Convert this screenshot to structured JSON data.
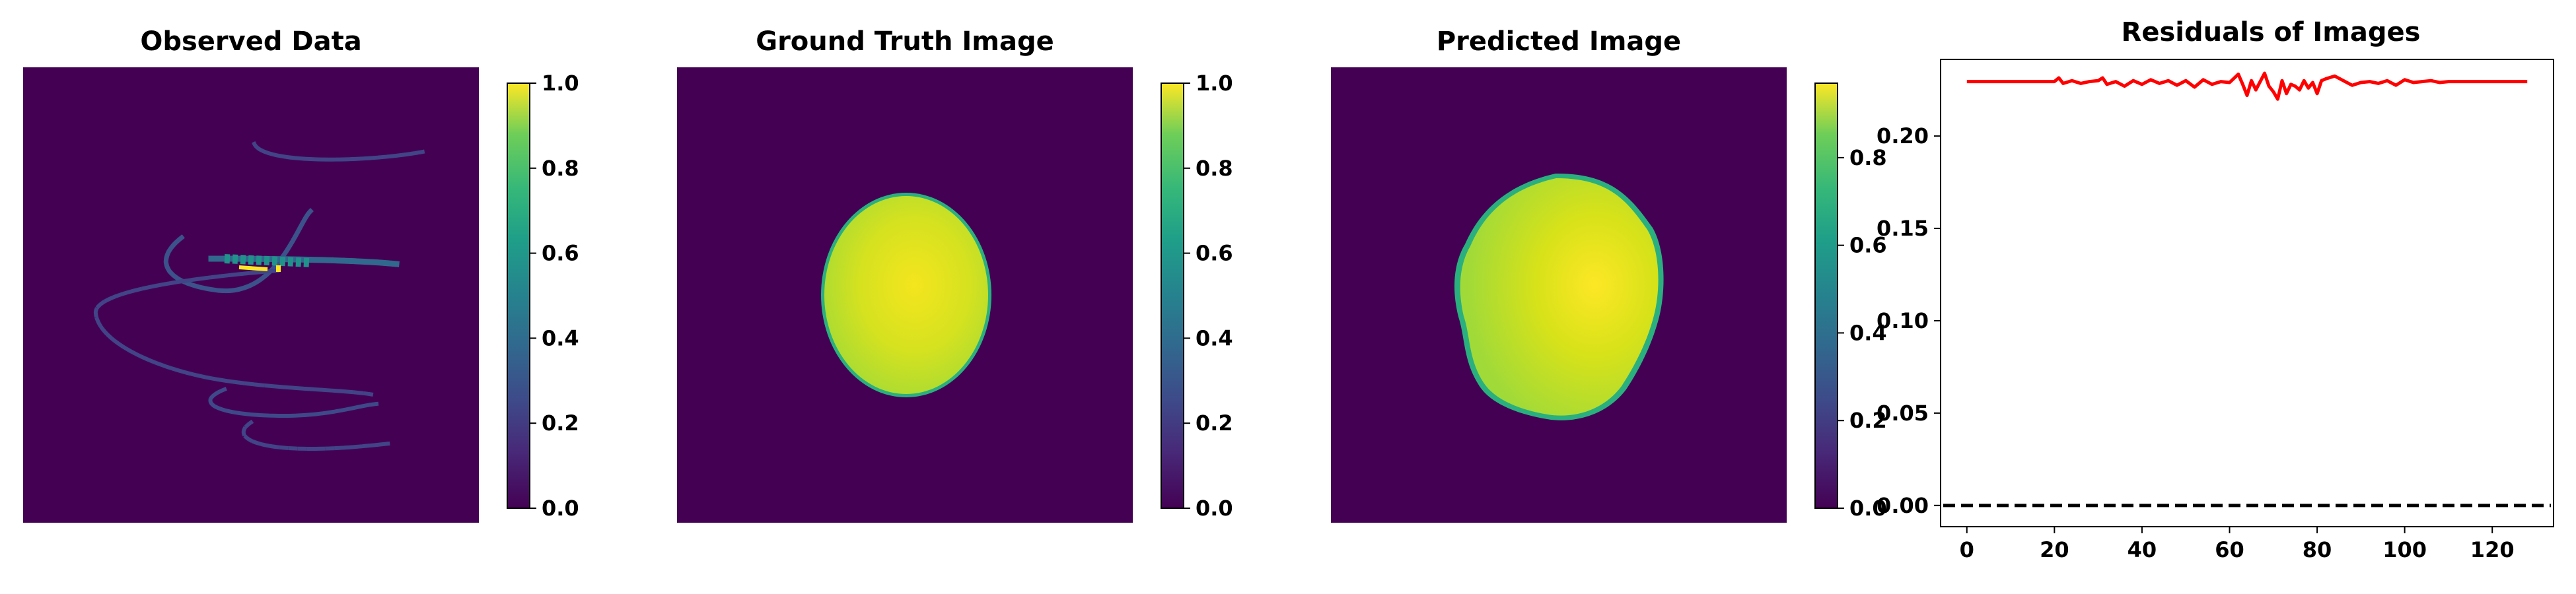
{
  "colors": {
    "viridis_dark": "#440154",
    "viridis_mid": "#21918c",
    "viridis_bright": "#fde725",
    "residual_line": "#ff0000",
    "zero_line": "#000000"
  },
  "chart_data": [
    {
      "type": "heatmap",
      "title": "Observed Data",
      "colormap": "viridis",
      "colorbar": {
        "vmin": 0.0,
        "vmax": 1.0,
        "ticks": [
          "0.0",
          "0.2",
          "0.4",
          "0.6",
          "0.8",
          "1.0"
        ]
      },
      "content": "sparse helical streaks of low values (~0.1-0.3) with a bright cluster near the center (up to 1.0)"
    },
    {
      "type": "heatmap",
      "title": "Ground Truth Image",
      "colormap": "viridis",
      "colorbar": {
        "vmin": 0.0,
        "vmax": 1.0,
        "ticks": [
          "0.0",
          "0.2",
          "0.4",
          "0.6",
          "0.8",
          "1.0"
        ]
      },
      "content": "single uniform ellipse (~0.85-0.95) on a zero background"
    },
    {
      "type": "heatmap",
      "title": "Predicted Image",
      "colormap": "viridis",
      "colorbar": {
        "vmin": 0.0,
        "vmax": 0.97,
        "ticks": [
          "0.0",
          "0.2",
          "0.4",
          "0.6",
          "0.8"
        ]
      },
      "content": "irregular blob (~0.75-0.95) on a zero background"
    },
    {
      "type": "line",
      "title": "Residuals of Images",
      "xlabel": "",
      "ylabel": "",
      "xlim": [
        -6,
        134
      ],
      "ylim": [
        -0.0115,
        0.2415
      ],
      "xticks": [
        0,
        20,
        40,
        60,
        80,
        100,
        120
      ],
      "yticks": [
        0.0,
        0.05,
        0.1,
        0.15,
        0.2
      ],
      "ytick_labels": [
        "0.00",
        "0.05",
        "0.10",
        "0.15",
        "0.20"
      ],
      "grid": false,
      "x": [
        0,
        2,
        4,
        6,
        8,
        10,
        12,
        14,
        16,
        18,
        20,
        21,
        22,
        24,
        26,
        28,
        30,
        31,
        32,
        34,
        36,
        38,
        40,
        42,
        44,
        46,
        48,
        50,
        52,
        54,
        56,
        58,
        60,
        62,
        63,
        64,
        65,
        66,
        67,
        68,
        69,
        70,
        71,
        72,
        73,
        74,
        75,
        76,
        77,
        78,
        79,
        80,
        81,
        82,
        84,
        86,
        88,
        90,
        92,
        94,
        96,
        98,
        100,
        102,
        104,
        106,
        108,
        110,
        112,
        114,
        116,
        118,
        120,
        122,
        124,
        126,
        128
      ],
      "y": [
        0.2295,
        0.2295,
        0.2295,
        0.2295,
        0.2295,
        0.2295,
        0.2295,
        0.2295,
        0.2295,
        0.2295,
        0.2295,
        0.2315,
        0.2285,
        0.23,
        0.2285,
        0.2295,
        0.23,
        0.2315,
        0.228,
        0.2295,
        0.227,
        0.23,
        0.228,
        0.2305,
        0.2285,
        0.23,
        0.2275,
        0.23,
        0.2265,
        0.2305,
        0.228,
        0.2295,
        0.229,
        0.2335,
        0.228,
        0.222,
        0.23,
        0.225,
        0.2295,
        0.234,
        0.227,
        0.224,
        0.22,
        0.23,
        0.223,
        0.228,
        0.227,
        0.225,
        0.23,
        0.226,
        0.229,
        0.223,
        0.23,
        0.231,
        0.2325,
        0.23,
        0.2275,
        0.229,
        0.2295,
        0.2285,
        0.23,
        0.2275,
        0.2305,
        0.229,
        0.2295,
        0.23,
        0.229,
        0.2295,
        0.2295,
        0.2295,
        0.2295,
        0.2295,
        0.2295,
        0.2295,
        0.2295,
        0.2295,
        0.2295
      ],
      "reference_line": {
        "y": 0.0,
        "style": "dashed"
      }
    }
  ]
}
